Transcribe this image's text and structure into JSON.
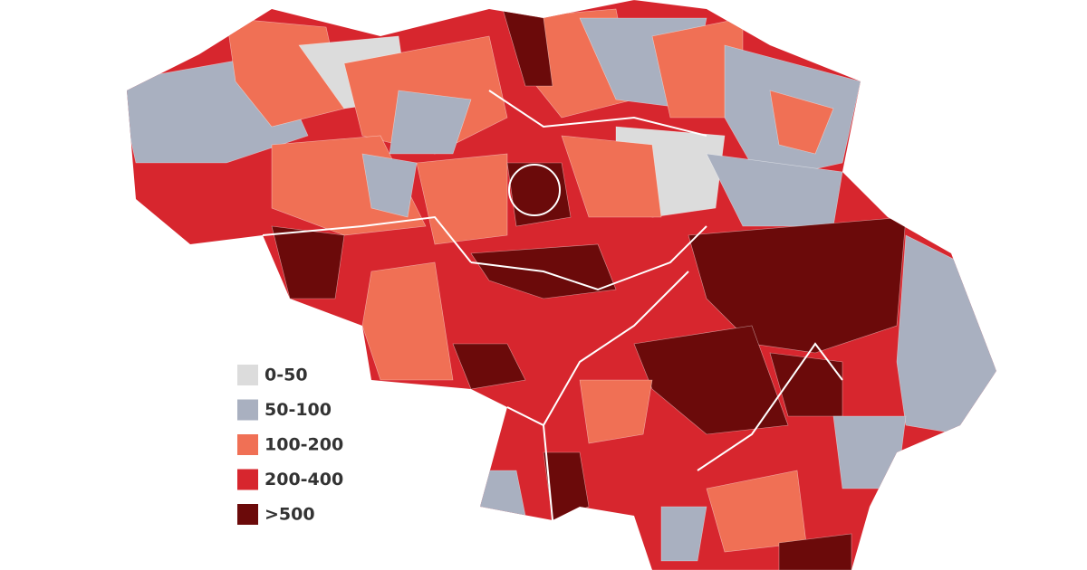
{
  "legend": {
    "items": [
      {
        "label": "0-50",
        "color": "#dcdcdc"
      },
      {
        "label": "50-100",
        "color": "#a9b0c0"
      },
      {
        "label": "100-200",
        "color": "#f07055"
      },
      {
        "label": "200-400",
        "color": "#d7262e"
      },
      {
        "label": ">500",
        "color": "#6b0a0a"
      }
    ]
  }
}
